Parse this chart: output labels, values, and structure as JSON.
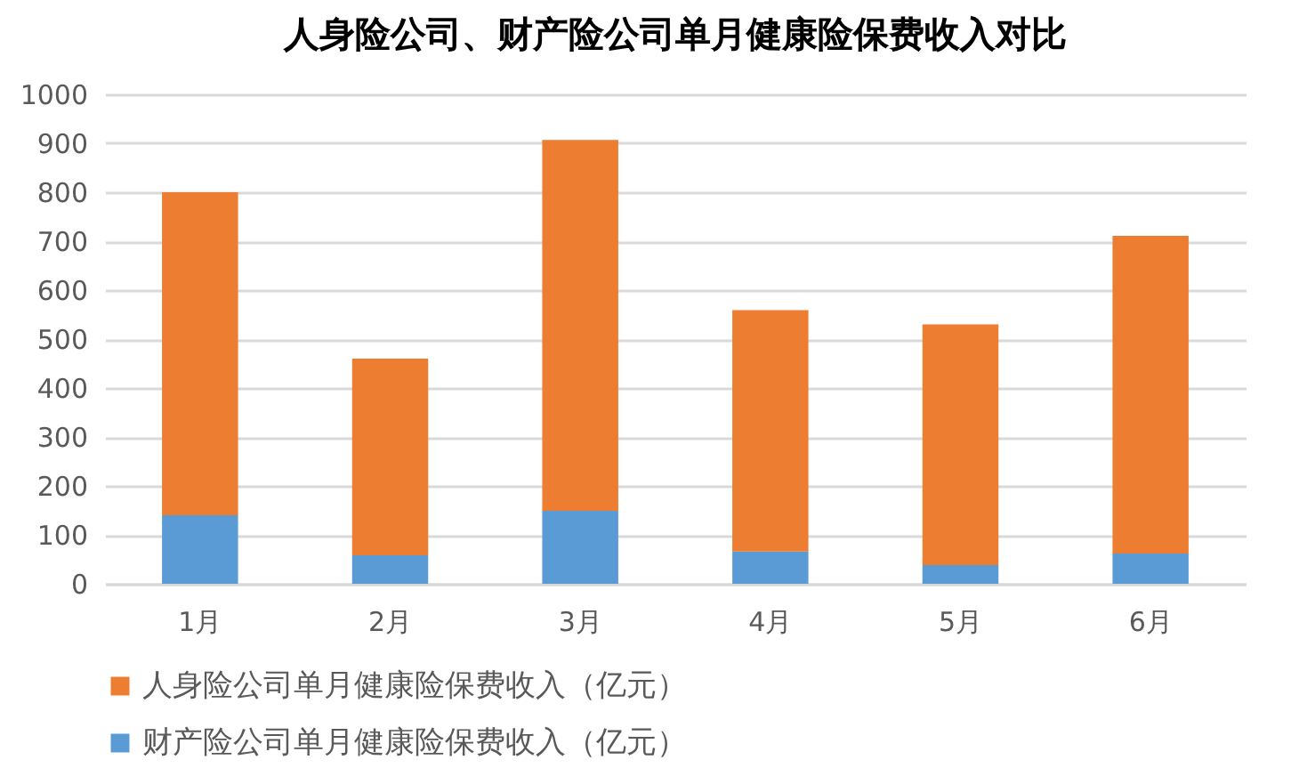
{
  "chart_data": {
    "type": "bar",
    "title": "人身险公司、财产险公司单月健康险保费收入对比",
    "categories": [
      "1月",
      "2月",
      "3月",
      "4月",
      "5月",
      "6月"
    ],
    "stacked": true,
    "series": [
      {
        "name": "财产险公司单月健康险保费收入（亿元）",
        "color": "#5b9bd5",
        "values": [
          140,
          58,
          149,
          66,
          38,
          62
        ]
      },
      {
        "name": "人身险公司单月健康险保费收入（亿元）",
        "color": "#ed7d31",
        "values": [
          660,
          402,
          758,
          493,
          492,
          649
        ]
      }
    ],
    "ylim": [
      0,
      1000
    ],
    "yticks": [
      0,
      100,
      200,
      300,
      400,
      500,
      600,
      700,
      800,
      900,
      1000
    ],
    "grid": "y",
    "legend": "bottom"
  }
}
